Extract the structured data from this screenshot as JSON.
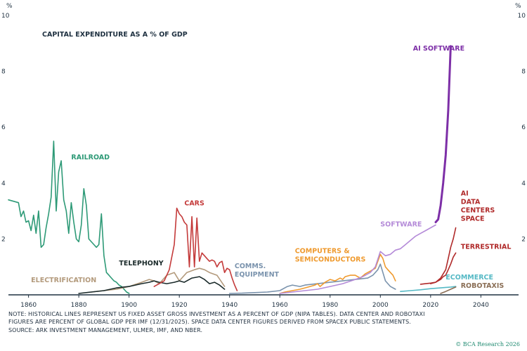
{
  "chart_data": {
    "type": "line",
    "title": "CAPITAL EXPENDITURE AS A % OF GDP",
    "unit_label": "%",
    "ylim": [
      0,
      10
    ],
    "xlim": [
      1852,
      2055
    ],
    "y_ticks": [
      {
        "value": 10,
        "label": "10"
      },
      {
        "value": 8,
        "label": "8"
      },
      {
        "value": 6,
        "label": "6"
      },
      {
        "value": 4,
        "label": "4"
      },
      {
        "value": 2,
        "label": "2"
      }
    ],
    "x_ticks": [
      1860,
      1880,
      1900,
      1920,
      1940,
      1960,
      1980,
      2000,
      2020,
      2040
    ],
    "grid": false,
    "series": [
      {
        "name": "RAILROAD",
        "color": "#2e9a77",
        "label_lines": [
          "RAILROAD"
        ],
        "label_at": [
          1877,
          4.85
        ],
        "label_anchor": "start",
        "x": [
          1852,
          1854,
          1856,
          1857,
          1858,
          1859,
          1860,
          1861,
          1862,
          1863,
          1864,
          1865,
          1866,
          1867,
          1868,
          1869,
          1870,
          1871,
          1872,
          1873,
          1874,
          1875,
          1876,
          1877,
          1878,
          1879,
          1880,
          1881,
          1882,
          1883,
          1884,
          1885,
          1886,
          1887,
          1888,
          1889,
          1890,
          1891,
          1892,
          1893,
          1894,
          1895,
          1896,
          1897,
          1898,
          1899,
          1900
        ],
        "y": [
          3.4,
          3.35,
          3.3,
          2.8,
          3.0,
          2.6,
          2.65,
          2.3,
          2.85,
          2.2,
          3.0,
          1.7,
          1.8,
          2.4,
          2.9,
          3.5,
          5.5,
          3.0,
          4.4,
          4.8,
          3.4,
          3.0,
          2.2,
          3.3,
          2.6,
          2.0,
          1.9,
          2.5,
          3.8,
          3.2,
          2.0,
          1.9,
          1.8,
          1.7,
          1.8,
          2.9,
          1.4,
          0.8,
          0.7,
          0.6,
          0.5,
          0.45,
          0.35,
          0.3,
          0.2,
          0.1,
          0.05
        ]
      },
      {
        "name": "ELECTRIFICATION",
        "color": "#b39a7c",
        "label_lines": [
          "ELECTRIFICATION"
        ],
        "label_at": [
          1861,
          0.45
        ],
        "label_anchor": "start",
        "x": [
          1885,
          1890,
          1895,
          1900,
          1905,
          1908,
          1910,
          1912,
          1915,
          1918,
          1920,
          1923,
          1926,
          1928,
          1930,
          1932,
          1935,
          1938
        ],
        "y": [
          0.1,
          0.15,
          0.2,
          0.3,
          0.45,
          0.55,
          0.5,
          0.4,
          0.7,
          0.8,
          0.5,
          0.8,
          0.9,
          0.95,
          0.9,
          0.8,
          0.7,
          0.3
        ]
      },
      {
        "name": "TELEPHONY",
        "color": "#1a2a2a",
        "label_lines": [
          "TELEPHONY"
        ],
        "label_at": [
          1896,
          1.05
        ],
        "label_anchor": "start",
        "x": [
          1880,
          1885,
          1890,
          1895,
          1900,
          1905,
          1908,
          1910,
          1912,
          1915,
          1918,
          1920,
          1922,
          1925,
          1928,
          1930,
          1932,
          1934,
          1936,
          1938
        ],
        "y": [
          0.05,
          0.1,
          0.15,
          0.25,
          0.3,
          0.4,
          0.45,
          0.5,
          0.45,
          0.4,
          0.45,
          0.5,
          0.45,
          0.6,
          0.65,
          0.55,
          0.4,
          0.45,
          0.35,
          0.2
        ]
      },
      {
        "name": "CARS",
        "color": "#c43a3a",
        "label_lines": [
          "CARS"
        ],
        "label_at": [
          1922,
          3.2
        ],
        "label_anchor": "start",
        "x": [
          1910,
          1912,
          1914,
          1916,
          1918,
          1919,
          1920,
          1921,
          1922,
          1923,
          1924,
          1925,
          1926,
          1927,
          1928,
          1929,
          1930,
          1931,
          1932,
          1933,
          1934,
          1935,
          1936,
          1937,
          1938,
          1939,
          1940,
          1941,
          1942,
          1943
        ],
        "y": [
          0.3,
          0.4,
          0.5,
          0.9,
          1.8,
          3.1,
          2.9,
          2.8,
          2.6,
          2.5,
          1.0,
          2.8,
          1.0,
          2.75,
          1.2,
          1.5,
          1.4,
          1.3,
          1.2,
          1.25,
          1.2,
          1.0,
          1.15,
          1.2,
          0.8,
          0.95,
          0.9,
          0.6,
          0.35,
          0.15
        ]
      },
      {
        "name": "COMMS. EQUIPMENT",
        "color": "#7a93ad",
        "label_lines": [
          "COMMS.",
          "EQUIPMENT"
        ],
        "label_at": [
          1942,
          0.95
        ],
        "label_anchor": "start",
        "x": [
          1940,
          1945,
          1950,
          1955,
          1960,
          1963,
          1965,
          1968,
          1970,
          1975,
          1980,
          1985,
          1990,
          1995,
          1997,
          1999,
          2000,
          2001,
          2002,
          2004,
          2006
        ],
        "y": [
          0.05,
          0.06,
          0.08,
          0.1,
          0.15,
          0.3,
          0.35,
          0.3,
          0.35,
          0.4,
          0.45,
          0.5,
          0.55,
          0.6,
          0.7,
          0.9,
          1.1,
          0.8,
          0.5,
          0.3,
          0.2
        ]
      },
      {
        "name": "COMPUTERS & SEMICONDUCTORS",
        "color": "#ef9a2e",
        "label_lines": [
          "COMPUTERS &",
          "SEMICONDUCTORS"
        ],
        "label_at": [
          1966,
          1.5
        ],
        "label_anchor": "start",
        "x": [
          1960,
          1962,
          1965,
          1968,
          1970,
          1972,
          1974,
          1975,
          1976,
          1978,
          1980,
          1982,
          1984,
          1985,
          1986,
          1988,
          1990,
          1992,
          1994,
          1996,
          1998,
          2000,
          2001,
          2002,
          2003,
          2004,
          2005,
          2006
        ],
        "y": [
          0.05,
          0.1,
          0.15,
          0.2,
          0.25,
          0.3,
          0.35,
          0.4,
          0.3,
          0.45,
          0.55,
          0.5,
          0.6,
          0.55,
          0.65,
          0.7,
          0.7,
          0.6,
          0.75,
          0.85,
          0.95,
          1.45,
          1.3,
          1.0,
          0.9,
          0.8,
          0.7,
          0.5
        ]
      },
      {
        "name": "SOFTWARE",
        "color": "#b48ad8",
        "label_lines": [
          "SOFTWARE"
        ],
        "label_at": [
          2000,
          2.45
        ],
        "label_anchor": "start",
        "x": [
          1960,
          1965,
          1970,
          1975,
          1980,
          1985,
          1990,
          1993,
          1996,
          1998,
          2000,
          2002,
          2004,
          2006,
          2008,
          2010,
          2012,
          2014,
          2016,
          2018,
          2020,
          2022
        ],
        "y": [
          0.05,
          0.1,
          0.15,
          0.2,
          0.3,
          0.4,
          0.55,
          0.65,
          0.8,
          1.0,
          1.55,
          1.4,
          1.45,
          1.6,
          1.65,
          1.8,
          1.95,
          2.1,
          2.2,
          2.3,
          2.4,
          2.5
        ]
      },
      {
        "name": "AI SOFTWARE",
        "color": "#7d2fa7",
        "label_lines": [
          "AI SOFTWARE"
        ],
        "label_at": [
          2013,
          8.75
        ],
        "label_anchor": "start",
        "stroke_width": 3,
        "x": [
          2022,
          2023,
          2024,
          2025,
          2026,
          2027,
          2028
        ],
        "y": [
          2.6,
          2.7,
          3.2,
          4.0,
          5.0,
          6.6,
          8.9
        ]
      },
      {
        "name": "AI DATA CENTERS SPACE",
        "color": "#b02a2a",
        "label_lines": [
          "AI",
          "DATA",
          "CENTERS",
          "SPACE"
        ],
        "label_at": [
          2032,
          3.55
        ],
        "label_anchor": "start",
        "x": [
          2020,
          2022,
          2024,
          2026,
          2027,
          2028,
          2029,
          2030
        ],
        "y": [
          0.4,
          0.45,
          0.6,
          0.9,
          1.3,
          1.7,
          2.0,
          2.4
        ]
      },
      {
        "name": "TERRESTRIAL",
        "color": "#b02a2a",
        "label_lines": [
          "TERRESTRIAL"
        ],
        "label_at": [
          2032,
          1.65
        ],
        "label_anchor": "start",
        "x": [
          2016,
          2018,
          2020,
          2022,
          2024,
          2025,
          2026,
          2027,
          2028,
          2029,
          2030
        ],
        "y": [
          0.38,
          0.4,
          0.42,
          0.45,
          0.55,
          0.65,
          0.7,
          0.9,
          1.1,
          1.35,
          1.5
        ]
      },
      {
        "name": "ECOMMERCE",
        "color": "#55b9c5",
        "label_lines": [
          "ECOMMERCE"
        ],
        "label_at": [
          2026,
          0.55
        ],
        "label_anchor": "start",
        "x": [
          2008,
          2012,
          2016,
          2020,
          2024,
          2028,
          2030
        ],
        "y": [
          0.12,
          0.15,
          0.18,
          0.22,
          0.25,
          0.28,
          0.3
        ]
      },
      {
        "name": "ROBOTAXIS",
        "color": "#8a6e55",
        "label_lines": [
          "ROBOTAXIS"
        ],
        "label_at": [
          2032,
          0.25
        ],
        "label_anchor": "start",
        "x": [
          2024,
          2026,
          2028,
          2030
        ],
        "y": [
          0.05,
          0.12,
          0.2,
          0.28
        ]
      }
    ]
  },
  "footnote": {
    "lines": [
      "NOTE: HISTORICAL LINES REPRESENT US FIXED ASSET GROSS INVESTMENT AS A PERCENT OF GDP (NIPA TABLES). DATA CENTER AND ROBOTAXI",
      "FIGURES ARE PERCENT OF GLOBAL GDP PER IMF (12/31/2025). SPACE DATA CENTER FIGURES DERIVED FROM SPACEX PUBLIC STATEMENTS.",
      "SOURCE: ARK INVESTMENT MANAGEMENT, ULMER, IMF, AND NBER."
    ]
  },
  "credit": "© BCA Research 2026",
  "colors": {
    "axis": "#1e3040",
    "background": "#ffffff",
    "credit": "#1f8a70"
  }
}
